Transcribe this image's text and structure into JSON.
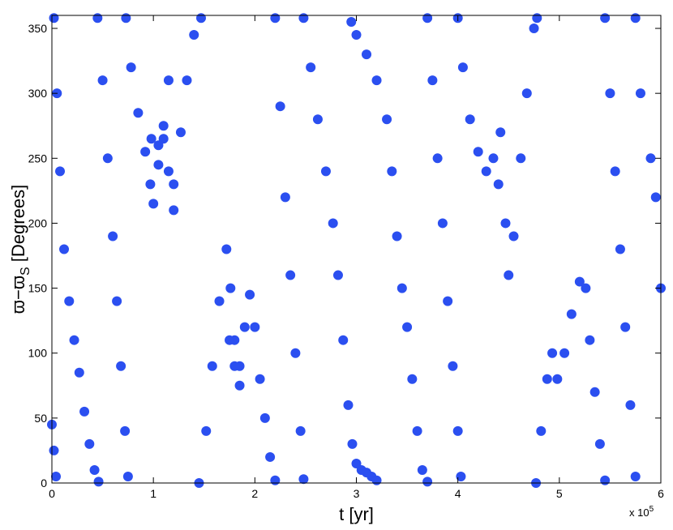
{
  "chart_data": {
    "type": "scatter",
    "xlabel": "t [yr]",
    "ylabel": {
      "main": "ϖ−ϖ",
      "sub": "S",
      "rest": " [Degrees]"
    },
    "x_multiplier": {
      "base": "x 10",
      "exp": "5"
    },
    "xlim": [
      0,
      6
    ],
    "xticks": [
      0,
      1,
      2,
      3,
      4,
      5,
      6
    ],
    "ylim": [
      0,
      360
    ],
    "yticks": [
      0,
      50,
      100,
      150,
      200,
      250,
      300,
      350
    ],
    "color": "#2b4ff0",
    "x": [
      0.0,
      0.02,
      0.04,
      0.02,
      0.05,
      0.08,
      0.12,
      0.17,
      0.22,
      0.27,
      0.32,
      0.37,
      0.42,
      0.46,
      0.45,
      0.5,
      0.55,
      0.6,
      0.64,
      0.68,
      0.72,
      0.75,
      0.73,
      0.78,
      0.85,
      0.92,
      0.97,
      1.0,
      1.05,
      1.1,
      1.15,
      0.98,
      1.05,
      1.1,
      1.15,
      1.2,
      1.2,
      1.27,
      1.33,
      1.4,
      1.47,
      1.45,
      1.52,
      1.58,
      1.65,
      1.72,
      1.76,
      1.8,
      1.85,
      1.9,
      1.95,
      2.0,
      2.05,
      2.1,
      2.15,
      2.2,
      1.75,
      1.8,
      1.85,
      2.2,
      2.25,
      2.3,
      2.35,
      2.4,
      2.45,
      2.48,
      2.48,
      2.55,
      2.62,
      2.7,
      2.77,
      2.82,
      2.87,
      2.92,
      2.96,
      3.0,
      3.05,
      3.1,
      3.15,
      3.2,
      2.95,
      3.0,
      3.1,
      3.2,
      3.3,
      3.35,
      3.4,
      3.45,
      3.5,
      3.55,
      3.6,
      3.65,
      3.7,
      3.7,
      3.75,
      3.8,
      3.85,
      3.9,
      3.95,
      4.0,
      4.03,
      4.0,
      4.05,
      4.12,
      4.2,
      4.28,
      4.35,
      4.42,
      4.4,
      4.47,
      4.5,
      4.55,
      4.62,
      4.68,
      4.75,
      4.78,
      4.77,
      4.82,
      4.88,
      4.93,
      4.98,
      5.05,
      5.12,
      5.2,
      5.26,
      5.3,
      5.35,
      5.4,
      5.45,
      5.45,
      5.5,
      5.55,
      5.6,
      5.65,
      5.7,
      5.75,
      5.75,
      5.8,
      5.9,
      5.95,
      6.0
    ],
    "y": [
      45,
      25,
      5,
      358,
      300,
      240,
      180,
      140,
      110,
      85,
      55,
      30,
      10,
      1,
      358,
      310,
      250,
      190,
      140,
      90,
      40,
      5,
      358,
      320,
      285,
      255,
      230,
      215,
      245,
      275,
      310,
      265,
      260,
      265,
      240,
      210,
      230,
      270,
      310,
      345,
      358,
      0,
      40,
      90,
      140,
      180,
      150,
      110,
      90,
      120,
      145,
      120,
      80,
      50,
      20,
      2,
      110,
      90,
      75,
      358,
      290,
      220,
      160,
      100,
      40,
      3,
      358,
      320,
      280,
      240,
      200,
      160,
      110,
      60,
      30,
      15,
      10,
      8,
      5,
      2,
      355,
      345,
      330,
      310,
      280,
      240,
      190,
      150,
      120,
      80,
      40,
      10,
      1,
      358,
      310,
      250,
      200,
      140,
      90,
      40,
      5,
      358,
      320,
      280,
      255,
      240,
      250,
      270,
      230,
      200,
      160,
      190,
      250,
      300,
      350,
      358,
      0,
      40,
      80,
      100,
      80,
      100,
      130,
      155,
      150,
      110,
      70,
      30,
      2,
      358,
      300,
      240,
      180,
      120,
      60,
      5,
      358,
      300,
      250,
      220,
      150
    ]
  }
}
